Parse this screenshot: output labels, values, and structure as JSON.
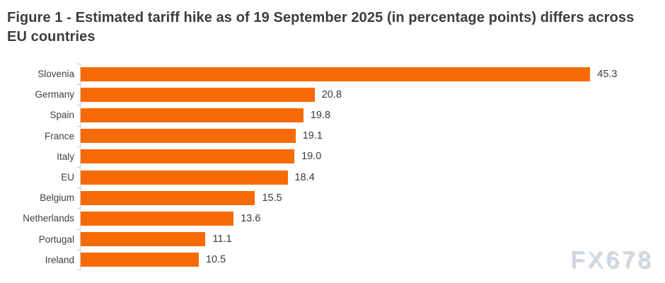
{
  "title": "Figure 1 - Estimated tariff hike as of 19 September 2025 (in percentage points) differs across EU countries",
  "watermark": "FX678",
  "colors": {
    "bar": "#f86a05",
    "title_text": "#3d3d3d",
    "label_text": "#3f3f3f",
    "axis_line": "#d2d2d2",
    "watermark_text": "#c7d9ee"
  },
  "chart_data": {
    "type": "bar",
    "orientation": "horizontal",
    "title": "Figure 1 - Estimated tariff hike as of 19 September 2025 (in percentage points) differs across EU countries",
    "categories": [
      "Slovenia",
      "Germany",
      "Spain",
      "France",
      "Italy",
      "EU",
      "Belgium",
      "Netherlands",
      "Portugal",
      "Ireland"
    ],
    "values": [
      45.3,
      20.8,
      19.8,
      19.1,
      19.0,
      18.4,
      15.5,
      13.6,
      11.1,
      10.5
    ],
    "value_labels": [
      "45.3",
      "20.8",
      "19.8",
      "19.1",
      "19.0",
      "18.4",
      "15.5",
      "13.6",
      "11.1",
      "10.5"
    ],
    "xlabel": "",
    "ylabel": "",
    "xlim": [
      0,
      50
    ],
    "grid": false,
    "data_labels": true,
    "legend": null
  }
}
